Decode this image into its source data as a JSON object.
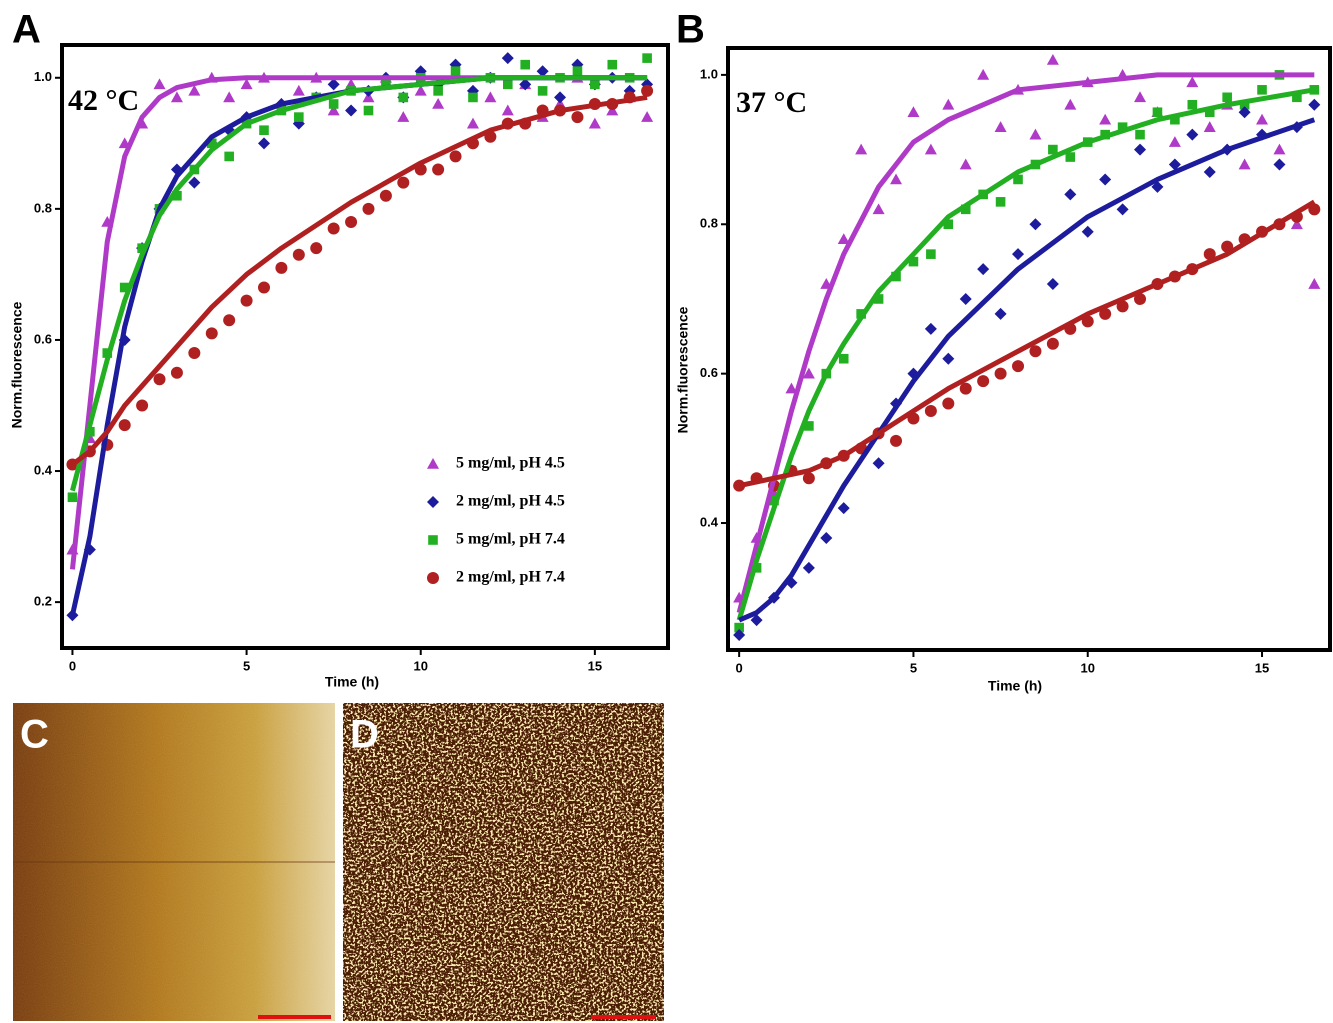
{
  "chart_data": [
    {
      "panel": "A",
      "type": "scatter",
      "annotation": "42 °C",
      "xlabel": "Time (h)",
      "ylabel": "Norm.fluorescence",
      "xlim": [
        -0.3,
        17.1
      ],
      "ylim": [
        0.13,
        1.05
      ],
      "xticks": [
        0,
        5,
        10,
        15
      ],
      "yticks": [
        {
          "value": 1.0,
          "label": "1.0"
        },
        0.8,
        0.6,
        0.4,
        0.2
      ],
      "legend": "lower right",
      "x": [
        0,
        0.5,
        1,
        1.5,
        2,
        2.5,
        3,
        3.5,
        4,
        4.5,
        5,
        5.5,
        6,
        6.5,
        7,
        7.5,
        8,
        8.5,
        9,
        9.5,
        10,
        10.5,
        11,
        11.5,
        12,
        12.5,
        13,
        13.5,
        14,
        14.5,
        15,
        15.5,
        16,
        16.5
      ],
      "fit_x": [
        0,
        0.5,
        1,
        1.5,
        2,
        2.5,
        3,
        4,
        5,
        6,
        8,
        10,
        12,
        14,
        16.5
      ],
      "series": [
        {
          "name": "5 mg/ml, pH 4.5",
          "color": "#b03ac8",
          "marker": "triangle",
          "values": [
            0.28,
            0.45,
            0.78,
            0.9,
            0.93,
            0.99,
            0.97,
            0.98,
            1.0,
            0.97,
            0.99,
            1.0,
            0.96,
            0.98,
            1.0,
            0.95,
            0.99,
            0.97,
            1.0,
            0.94,
            0.98,
            0.96,
            1.0,
            0.93,
            0.97,
            0.95,
            0.99,
            0.94,
            0.96,
            1.0,
            0.93,
            0.95,
            0.97,
            0.94
          ],
          "fit_values": [
            0.25,
            0.5,
            0.75,
            0.88,
            0.94,
            0.97,
            0.985,
            0.997,
            1,
            1,
            1,
            1,
            1,
            1,
            1
          ]
        },
        {
          "name": "2 mg/ml, pH 4.5",
          "color": "#1c1c9c",
          "marker": "diamond",
          "values": [
            0.18,
            0.28,
            0.44,
            0.6,
            0.74,
            0.8,
            0.86,
            0.84,
            0.9,
            0.92,
            0.94,
            0.9,
            0.96,
            0.93,
            0.97,
            0.99,
            0.95,
            0.98,
            1.0,
            0.97,
            1.01,
            0.99,
            1.02,
            0.98,
            1.0,
            1.03,
            0.99,
            1.01,
            0.97,
            1.02,
            0.99,
            1.0,
            0.98,
            0.99
          ],
          "fit_values": [
            0.18,
            0.3,
            0.47,
            0.62,
            0.72,
            0.8,
            0.85,
            0.91,
            0.94,
            0.96,
            0.98,
            0.99,
            1.0,
            1.0,
            1.0
          ]
        },
        {
          "name": "5 mg/ml, pH 7.4",
          "color": "#22b022",
          "marker": "square",
          "values": [
            0.36,
            0.46,
            0.58,
            0.68,
            0.74,
            0.8,
            0.82,
            0.86,
            0.9,
            0.88,
            0.93,
            0.92,
            0.95,
            0.94,
            0.97,
            0.96,
            0.98,
            0.95,
            0.99,
            0.97,
            1.0,
            0.98,
            1.01,
            0.97,
            1.0,
            0.99,
            1.02,
            0.98,
            1.0,
            1.01,
            0.99,
            1.02,
            1.0,
            1.03
          ],
          "fit_values": [
            0.37,
            0.47,
            0.57,
            0.66,
            0.73,
            0.79,
            0.83,
            0.89,
            0.93,
            0.95,
            0.98,
            0.99,
            1.0,
            1.0,
            1.0
          ]
        },
        {
          "name": "2 mg/ml, pH 7.4",
          "color": "#b02020",
          "marker": "circle",
          "values": [
            0.41,
            0.43,
            0.44,
            0.47,
            0.5,
            0.54,
            0.55,
            0.58,
            0.61,
            0.63,
            0.66,
            0.68,
            0.71,
            0.73,
            0.74,
            0.77,
            0.78,
            0.8,
            0.82,
            0.84,
            0.86,
            0.86,
            0.88,
            0.9,
            0.91,
            0.93,
            0.93,
            0.95,
            0.95,
            0.94,
            0.96,
            0.96,
            0.97,
            0.98
          ],
          "fit_values": [
            0.41,
            0.43,
            0.46,
            0.5,
            0.53,
            0.56,
            0.59,
            0.65,
            0.7,
            0.74,
            0.81,
            0.87,
            0.92,
            0.95,
            0.97
          ]
        }
      ]
    },
    {
      "panel": "B",
      "type": "scatter",
      "annotation": "37 °C",
      "xlabel": "Time (h)",
      "ylabel": "Norm.fluorescence",
      "xlim": [
        -0.32,
        16.95
      ],
      "ylim": [
        0.23,
        1.036
      ],
      "xticks": [
        0,
        5,
        10,
        15
      ],
      "yticks": [
        {
          "value": 1.0,
          "label": "1.0"
        },
        0.8,
        0.6,
        0.4
      ],
      "x": [
        0,
        0.5,
        1,
        1.5,
        2,
        2.5,
        3,
        3.5,
        4,
        4.5,
        5,
        5.5,
        6,
        6.5,
        7,
        7.5,
        8,
        8.5,
        9,
        9.5,
        10,
        10.5,
        11,
        11.5,
        12,
        12.5,
        13,
        13.5,
        14,
        14.5,
        15,
        15.5,
        16,
        16.5
      ],
      "fit_x": [
        0,
        0.5,
        1,
        1.5,
        2,
        2.5,
        3,
        4,
        5,
        6,
        8,
        10,
        12,
        14,
        16.5
      ],
      "series": [
        {
          "color": "#b03ac8",
          "marker": "triangle",
          "values": [
            0.3,
            0.38,
            0.44,
            0.58,
            0.6,
            0.72,
            0.78,
            0.9,
            0.82,
            0.86,
            0.95,
            0.9,
            0.96,
            0.88,
            1.0,
            0.93,
            0.98,
            0.92,
            1.02,
            0.96,
            0.99,
            0.94,
            1.0,
            0.97,
            0.95,
            0.91,
            0.99,
            0.93,
            0.96,
            0.88,
            0.94,
            0.9,
            0.8,
            0.72
          ],
          "fit_values": [
            0.28,
            0.37,
            0.46,
            0.55,
            0.63,
            0.7,
            0.76,
            0.85,
            0.91,
            0.94,
            0.98,
            0.99,
            1.0,
            1.0,
            1.0
          ]
        },
        {
          "color": "#22b022",
          "marker": "square",
          "values": [
            0.26,
            0.34,
            0.43,
            0.47,
            0.53,
            0.6,
            0.62,
            0.68,
            0.7,
            0.73,
            0.75,
            0.76,
            0.8,
            0.82,
            0.84,
            0.83,
            0.86,
            0.88,
            0.9,
            0.89,
            0.91,
            0.92,
            0.93,
            0.92,
            0.95,
            0.94,
            0.96,
            0.95,
            0.97,
            0.96,
            0.98,
            1.0,
            0.97,
            0.98
          ],
          "fit_values": [
            0.27,
            0.35,
            0.42,
            0.49,
            0.55,
            0.6,
            0.64,
            0.71,
            0.76,
            0.81,
            0.87,
            0.91,
            0.94,
            0.96,
            0.98
          ]
        },
        {
          "color": "#1c1c9c",
          "marker": "diamond",
          "values": [
            0.25,
            0.27,
            0.3,
            0.32,
            0.34,
            0.38,
            0.42,
            0.5,
            0.48,
            0.56,
            0.6,
            0.66,
            0.62,
            0.7,
            0.74,
            0.68,
            0.76,
            0.8,
            0.72,
            0.84,
            0.79,
            0.86,
            0.82,
            0.9,
            0.85,
            0.88,
            0.92,
            0.87,
            0.9,
            0.95,
            0.92,
            0.88,
            0.93,
            0.96
          ],
          "fit_values": [
            0.27,
            0.28,
            0.3,
            0.33,
            0.37,
            0.41,
            0.45,
            0.52,
            0.59,
            0.65,
            0.74,
            0.81,
            0.86,
            0.9,
            0.94
          ]
        },
        {
          "color": "#b02020",
          "marker": "circle",
          "values": [
            0.45,
            0.46,
            0.45,
            0.47,
            0.46,
            0.48,
            0.49,
            0.5,
            0.52,
            0.51,
            0.54,
            0.55,
            0.56,
            0.58,
            0.59,
            0.6,
            0.61,
            0.63,
            0.64,
            0.66,
            0.67,
            0.68,
            0.69,
            0.7,
            0.72,
            0.73,
            0.74,
            0.76,
            0.77,
            0.78,
            0.79,
            0.8,
            0.81,
            0.82
          ],
          "fit_values": [
            0.45,
            0.455,
            0.46,
            0.465,
            0.47,
            0.48,
            0.49,
            0.52,
            0.55,
            0.58,
            0.63,
            0.68,
            0.72,
            0.76,
            0.83
          ]
        }
      ]
    }
  ],
  "images": [
    {
      "label": "C"
    },
    {
      "label": "D"
    }
  ]
}
